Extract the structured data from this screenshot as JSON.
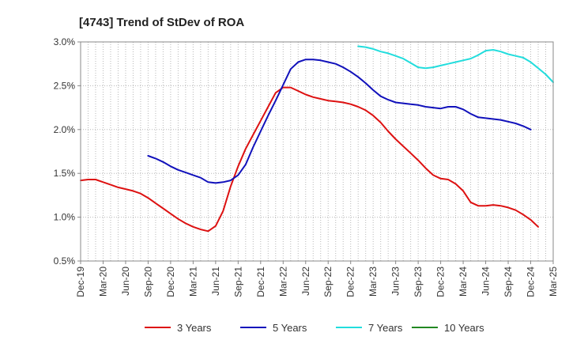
{
  "chart_data": {
    "type": "line",
    "title": "[4743]  Trend of StDev of ROA",
    "xlabel": "",
    "ylabel": "",
    "ylim": [
      0.5,
      3.0
    ],
    "y_ticks": [
      0.5,
      1.0,
      1.5,
      2.0,
      2.5,
      3.0
    ],
    "y_tick_labels": [
      "0.5%",
      "1.0%",
      "1.5%",
      "2.0%",
      "2.5%",
      "3.0%"
    ],
    "x_tick_labels": [
      "Dec-19",
      "Mar-20",
      "Jun-20",
      "Sep-20",
      "Dec-20",
      "Mar-21",
      "Jun-21",
      "Sep-21",
      "Dec-21",
      "Mar-22",
      "Jun-22",
      "Sep-22",
      "Dec-22",
      "Mar-23",
      "Jun-23",
      "Sep-23",
      "Dec-23",
      "Mar-24",
      "Jun-24",
      "Sep-24",
      "Dec-24",
      "Mar-25"
    ],
    "grid": true,
    "legend_position": "bottom",
    "series": [
      {
        "name": "3 Years",
        "color": "#dd1111",
        "start_index": 0,
        "values": [
          1.42,
          1.43,
          1.43,
          1.4,
          1.37,
          1.34,
          1.32,
          1.3,
          1.27,
          1.22,
          1.16,
          1.1,
          1.04,
          0.98,
          0.93,
          0.89,
          0.86,
          0.84,
          0.9,
          1.07,
          1.35,
          1.58,
          1.78,
          1.94,
          2.1,
          2.26,
          2.42,
          2.48,
          2.48,
          2.44,
          2.4,
          2.37,
          2.35,
          2.33,
          2.32,
          2.31,
          2.29,
          2.26,
          2.22,
          2.16,
          2.08,
          1.98,
          1.89,
          1.81,
          1.73,
          1.65,
          1.56,
          1.48,
          1.44,
          1.43,
          1.38,
          1.3,
          1.17,
          1.13,
          1.13,
          1.14,
          1.13,
          1.11,
          1.08,
          1.03,
          0.97,
          0.89
        ]
      },
      {
        "name": "5 Years",
        "color": "#1111bb",
        "start_index": 9,
        "values": [
          1.7,
          1.67,
          1.63,
          1.58,
          1.54,
          1.51,
          1.48,
          1.45,
          1.4,
          1.39,
          1.4,
          1.42,
          1.48,
          1.6,
          1.8,
          1.98,
          2.16,
          2.33,
          2.51,
          2.69,
          2.77,
          2.8,
          2.8,
          2.79,
          2.77,
          2.75,
          2.71,
          2.66,
          2.6,
          2.53,
          2.45,
          2.38,
          2.34,
          2.31,
          2.3,
          2.29,
          2.28,
          2.26,
          2.25,
          2.24,
          2.26,
          2.26,
          2.23,
          2.18,
          2.14,
          2.13,
          2.12,
          2.11,
          2.09,
          2.07,
          2.04,
          2.0
        ]
      },
      {
        "name": "7 Years",
        "color": "#22dddd",
        "start_index": 37,
        "values": [
          2.95,
          2.94,
          2.92,
          2.89,
          2.87,
          2.84,
          2.81,
          2.76,
          2.71,
          2.7,
          2.71,
          2.73,
          2.75,
          2.77,
          2.79,
          2.81,
          2.85,
          2.9,
          2.91,
          2.89,
          2.86,
          2.84,
          2.82,
          2.77,
          2.7,
          2.63,
          2.54
        ]
      },
      {
        "name": "10 Years",
        "color": "#228822",
        "start_index": 0,
        "values": []
      }
    ]
  }
}
